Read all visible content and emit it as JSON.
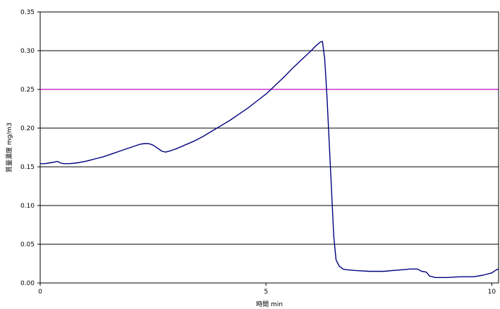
{
  "chart_data": {
    "type": "line",
    "title": "",
    "xlabel": "時間  min",
    "ylabel": "質量濃度  mg/m3",
    "xlim": [
      0,
      10.15
    ],
    "ylim": [
      0,
      0.35
    ],
    "x_ticks": [
      0,
      5,
      10
    ],
    "x_tick_labels": [
      "0",
      "5",
      "10"
    ],
    "y_ticks": [
      0,
      0.05,
      0.1,
      0.15,
      0.2,
      0.25,
      0.3,
      0.35
    ],
    "y_tick_labels": [
      "0.00",
      "0.05",
      "0.10",
      "0.15",
      "0.20",
      "0.25",
      "0.30",
      "0.35"
    ],
    "grid": true,
    "legend": "none",
    "threshold": {
      "value": 0.25,
      "color": "#cc33cc"
    },
    "series": [
      {
        "color": "#000080",
        "points": [
          [
            0.0,
            0.154
          ],
          [
            0.1,
            0.154
          ],
          [
            0.2,
            0.155
          ],
          [
            0.3,
            0.156
          ],
          [
            0.38,
            0.157
          ],
          [
            0.45,
            0.155
          ],
          [
            0.52,
            0.154
          ],
          [
            0.65,
            0.154
          ],
          [
            0.8,
            0.155
          ],
          [
            1.0,
            0.157
          ],
          [
            1.2,
            0.16
          ],
          [
            1.4,
            0.163
          ],
          [
            1.6,
            0.167
          ],
          [
            1.8,
            0.171
          ],
          [
            2.0,
            0.175
          ],
          [
            2.2,
            0.179
          ],
          [
            2.3,
            0.18
          ],
          [
            2.4,
            0.18
          ],
          [
            2.5,
            0.178
          ],
          [
            2.6,
            0.174
          ],
          [
            2.7,
            0.17
          ],
          [
            2.78,
            0.169
          ],
          [
            2.9,
            0.171
          ],
          [
            3.0,
            0.173
          ],
          [
            3.2,
            0.178
          ],
          [
            3.4,
            0.183
          ],
          [
            3.6,
            0.189
          ],
          [
            3.8,
            0.196
          ],
          [
            4.0,
            0.203
          ],
          [
            4.2,
            0.21
          ],
          [
            4.4,
            0.218
          ],
          [
            4.6,
            0.226
          ],
          [
            4.8,
            0.235
          ],
          [
            5.0,
            0.244
          ],
          [
            5.2,
            0.255
          ],
          [
            5.4,
            0.266
          ],
          [
            5.6,
            0.278
          ],
          [
            5.8,
            0.289
          ],
          [
            6.0,
            0.3
          ],
          [
            6.1,
            0.306
          ],
          [
            6.2,
            0.311
          ],
          [
            6.25,
            0.312
          ],
          [
            6.3,
            0.29
          ],
          [
            6.35,
            0.24
          ],
          [
            6.4,
            0.18
          ],
          [
            6.45,
            0.12
          ],
          [
            6.5,
            0.06
          ],
          [
            6.55,
            0.03
          ],
          [
            6.62,
            0.022
          ],
          [
            6.7,
            0.018
          ],
          [
            6.8,
            0.017
          ],
          [
            7.0,
            0.016
          ],
          [
            7.3,
            0.015
          ],
          [
            7.6,
            0.015
          ],
          [
            8.0,
            0.017
          ],
          [
            8.2,
            0.018
          ],
          [
            8.35,
            0.018
          ],
          [
            8.45,
            0.015
          ],
          [
            8.55,
            0.014
          ],
          [
            8.62,
            0.009
          ],
          [
            8.75,
            0.007
          ],
          [
            9.0,
            0.007
          ],
          [
            9.3,
            0.008
          ],
          [
            9.6,
            0.008
          ],
          [
            9.8,
            0.01
          ],
          [
            10.0,
            0.013
          ],
          [
            10.1,
            0.017
          ],
          [
            10.15,
            0.018
          ]
        ]
      }
    ]
  }
}
